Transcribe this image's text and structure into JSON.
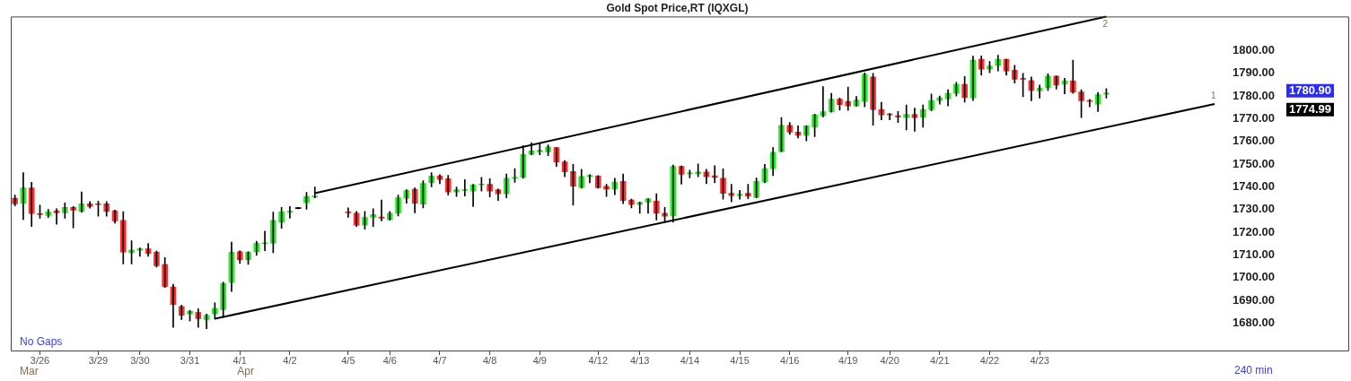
{
  "chart_data": {
    "type": "candlestick",
    "title": "Gold Spot Price,RT (IQXGL)",
    "categories": [
      null,
      null,
      null,
      "3/26",
      null,
      null,
      null,
      null,
      null,
      null,
      "3/29",
      null,
      null,
      null,
      null,
      "3/30",
      null,
      null,
      null,
      null,
      null,
      "3/31",
      null,
      null,
      null,
      null,
      null,
      "4/1",
      null,
      null,
      null,
      null,
      null,
      "4/2",
      null,
      null,
      null,
      null,
      null,
      null,
      "4/5",
      null,
      null,
      null,
      null,
      "4/6",
      null,
      null,
      null,
      null,
      null,
      "4/7",
      null,
      null,
      null,
      null,
      null,
      "4/8",
      null,
      null,
      null,
      null,
      null,
      "4/9",
      null,
      null,
      null,
      null,
      null,
      null,
      "4/12",
      null,
      null,
      null,
      null,
      "4/13",
      null,
      null,
      null,
      null,
      null,
      "4/14",
      null,
      null,
      null,
      null,
      null,
      "4/15",
      null,
      null,
      null,
      null,
      null,
      "4/16",
      null,
      null,
      null,
      null,
      null,
      null,
      "4/19",
      null,
      null,
      null,
      null,
      "4/20",
      null,
      null,
      null,
      null,
      null,
      "4/21",
      null,
      null,
      null,
      null,
      null,
      "4/22",
      null,
      null,
      null,
      null,
      null,
      "4/23",
      null,
      null,
      null,
      null,
      null,
      null,
      null,
      null,
      null,
      null,
      null,
      null,
      null,
      null,
      null,
      null,
      null,
      null,
      null,
      null,
      null,
      null
    ],
    "ohlc": [
      [
        1735,
        1736.4,
        1731.6,
        1732.5
      ],
      [
        1732.8,
        1746.3,
        1725.6,
        1739.6
      ],
      [
        1739.6,
        1742,
        1722.6,
        1728.3
      ],
      [
        1728.2,
        1732,
        1726.2,
        1727.8
      ],
      [
        1727.4,
        1730.1,
        1726.5,
        1729
      ],
      [
        1729.5,
        1730.4,
        1723.6,
        1728.6
      ],
      [
        1728.6,
        1733,
        1726.2,
        1731
      ],
      [
        1731,
        1731.4,
        1722,
        1729.8
      ],
      [
        1729.2,
        1737.8,
        1728.9,
        1732.6
      ],
      [
        1732.6,
        1733.6,
        1730.7,
        1731.4
      ],
      [
        1732.6,
        1733.8,
        1727.1,
        1732.2
      ],
      [
        1732.6,
        1733.6,
        1727.1,
        1729.2
      ],
      [
        1729.5,
        1729.8,
        1724.1,
        1725
      ],
      [
        1725.3,
        1729.1,
        1706.1,
        1711.3
      ],
      [
        1711,
        1716.3,
        1706.1,
        1712.2
      ],
      [
        1712.1,
        1713.1,
        1709.5,
        1712.8
      ],
      [
        1712.8,
        1715.1,
        1709.5,
        1710.7
      ],
      [
        1711.3,
        1711.8,
        1704.7,
        1705.3
      ],
      [
        1705.9,
        1708.9,
        1695.7,
        1696.1
      ],
      [
        1696,
        1697.2,
        1678.2,
        1688.2
      ],
      [
        1687.4,
        1688,
        1681.6,
        1683.5
      ],
      [
        1684.1,
        1685.7,
        1681,
        1685.3
      ],
      [
        1684.8,
        1686.4,
        1678.2,
        1682
      ],
      [
        1681.6,
        1684,
        1677.6,
        1683.5
      ],
      [
        1684.1,
        1689,
        1681.8,
        1686.5
      ],
      [
        1686,
        1698.1,
        1682.6,
        1697.5
      ],
      [
        1697.9,
        1715.7,
        1694,
        1711.3
      ],
      [
        1711.5,
        1711.9,
        1706.3,
        1707.9
      ],
      [
        1707.9,
        1711.5,
        1705.9,
        1711.3
      ],
      [
        1711.5,
        1716.1,
        1709.9,
        1715.2
      ],
      [
        1715,
        1720.5,
        1711.9,
        1715.4
      ],
      [
        1715.2,
        1728.9,
        1711,
        1725.3
      ],
      [
        1724.4,
        1731,
        1721.8,
        1729
      ],
      [
        1728.9,
        1731.4,
        1726.2,
        1729.2
      ],
      [
        1730.5,
        1731,
        1730.4,
        1730.9
      ],
      [
        1733,
        1737.6,
        1730.2,
        1735.8
      ],
      [
        1735.5,
        1740,
        1735.2,
        1736
      ],
      null,
      null,
      null,
      [
        1729,
        1730.8,
        1726.6,
        1728.6
      ],
      [
        1728.4,
        1729.2,
        1722.6,
        1723.2
      ],
      [
        1723.2,
        1729.2,
        1721.4,
        1726.6
      ],
      [
        1726.6,
        1730.4,
        1722.6,
        1727.8
      ],
      [
        1726.8,
        1734.2,
        1725,
        1726.2
      ],
      [
        1725.6,
        1729.2,
        1725.3,
        1728.4
      ],
      [
        1728.4,
        1736.4,
        1727.2,
        1735.2
      ],
      [
        1735,
        1738.8,
        1732.8,
        1738.4
      ],
      [
        1739,
        1739.6,
        1728.6,
        1732.8
      ],
      [
        1732.4,
        1742.7,
        1730.8,
        1741.5
      ],
      [
        1741.8,
        1746.3,
        1740,
        1744.8
      ],
      [
        1744.8,
        1745.4,
        1741.4,
        1743.3
      ],
      [
        1743.6,
        1745.1,
        1736.4,
        1737.8
      ],
      [
        1737.8,
        1740,
        1735.8,
        1738.8
      ],
      [
        1738.5,
        1743.2,
        1736,
        1738.7
      ],
      [
        1738.2,
        1741.2,
        1731.4,
        1740.9
      ],
      [
        1740.9,
        1744.2,
        1738.2,
        1741.3
      ],
      [
        1741.2,
        1743.6,
        1735.6,
        1738.2
      ],
      [
        1738.8,
        1739.1,
        1734,
        1737
      ],
      [
        1737,
        1745.7,
        1735.2,
        1743.8
      ],
      [
        1743.8,
        1748.1,
        1742,
        1744.2
      ],
      [
        1744.2,
        1758.2,
        1743.8,
        1754.3
      ],
      [
        1754.3,
        1759.4,
        1754.1,
        1755.8
      ],
      [
        1755.4,
        1759.1,
        1754.1,
        1756.1
      ],
      [
        1755.4,
        1758.5,
        1753.7,
        1757.6
      ],
      [
        1757.3,
        1757.3,
        1749,
        1751
      ],
      [
        1751,
        1751.6,
        1744.5,
        1746.6
      ],
      [
        1746.8,
        1749.9,
        1731.9,
        1740.3
      ],
      [
        1739.7,
        1747.8,
        1739.4,
        1744.6
      ],
      [
        1744.5,
        1745.4,
        1741.8,
        1745.1
      ],
      [
        1744.8,
        1745,
        1739.4,
        1739.6
      ],
      [
        1740.3,
        1741.2,
        1735.8,
        1739
      ],
      [
        1739,
        1743.8,
        1736.6,
        1742.1
      ],
      [
        1742.4,
        1745.7,
        1732.6,
        1734
      ],
      [
        1734.2,
        1734.6,
        1730.8,
        1732.2
      ],
      [
        1732.2,
        1733.4,
        1728.4,
        1733.2
      ],
      [
        1733.2,
        1734.8,
        1728.4,
        1734.8
      ],
      [
        1733.8,
        1737,
        1725.4,
        1728.4
      ],
      [
        1728.4,
        1731,
        1724.4,
        1727.1
      ],
      [
        1727.2,
        1749.6,
        1724.4,
        1749
      ],
      [
        1749,
        1749.2,
        1741.2,
        1745.6
      ],
      [
        1745.8,
        1747.4,
        1744,
        1746
      ],
      [
        1745.8,
        1750.1,
        1744.5,
        1746.6
      ],
      [
        1746.6,
        1747.8,
        1741.4,
        1744.5
      ],
      [
        1744.9,
        1749.3,
        1741.8,
        1744.2
      ],
      [
        1743.8,
        1748,
        1734.6,
        1737.2
      ],
      [
        1737.2,
        1741.2,
        1733.4,
        1736.2
      ],
      [
        1736.2,
        1738.5,
        1734.6,
        1736.8
      ],
      [
        1737.2,
        1741.2,
        1734.8,
        1736
      ],
      [
        1735.4,
        1743.9,
        1735.2,
        1742.4
      ],
      [
        1742.1,
        1749.9,
        1741.8,
        1748.1
      ],
      [
        1748,
        1757.3,
        1745,
        1755.3
      ],
      [
        1755.5,
        1770.5,
        1755.5,
        1767.1
      ],
      [
        1767.1,
        1768.4,
        1763.1,
        1764.1
      ],
      [
        1764.1,
        1766.9,
        1761.5,
        1762.7
      ],
      [
        1762.7,
        1766.9,
        1760.3,
        1766.9
      ],
      [
        1766.3,
        1772,
        1762.1,
        1771.7
      ],
      [
        1771.3,
        1784.2,
        1770.8,
        1773.1
      ],
      [
        1773.1,
        1781.2,
        1772.9,
        1778.6
      ],
      [
        1778.6,
        1779.1,
        1773.8,
        1776.2
      ],
      [
        1777.6,
        1784,
        1773.7,
        1775.6
      ],
      [
        1775.6,
        1779.8,
        1775.5,
        1778.2
      ],
      [
        1777.6,
        1790.2,
        1775.2,
        1789.6
      ],
      [
        1788.4,
        1790,
        1767.2,
        1774.1
      ],
      [
        1774.1,
        1777.3,
        1769.5,
        1771.7
      ],
      [
        1772.1,
        1772.3,
        1769.5,
        1771.7
      ],
      [
        1771.3,
        1773.2,
        1768.3,
        1770.8
      ],
      [
        1770.5,
        1776.1,
        1765.1,
        1771.9
      ],
      [
        1771.9,
        1774.7,
        1764.5,
        1770.5
      ],
      [
        1770.7,
        1776.1,
        1766.3,
        1774.1
      ],
      [
        1774.1,
        1780.9,
        1773.5,
        1778
      ],
      [
        1778,
        1780,
        1776.4,
        1779.2
      ],
      [
        1778.8,
        1782.8,
        1775.6,
        1781.2
      ],
      [
        1781.2,
        1786,
        1780,
        1785.1
      ],
      [
        1785.1,
        1788.6,
        1777.3,
        1779.4
      ],
      [
        1779.2,
        1797.6,
        1778,
        1795.8
      ],
      [
        1796.2,
        1797.7,
        1789.2,
        1791.8
      ],
      [
        1791.8,
        1795.2,
        1790.2,
        1793.2
      ],
      [
        1793.4,
        1798,
        1791,
        1796.2
      ],
      [
        1796.2,
        1796.2,
        1789.2,
        1791
      ],
      [
        1791.4,
        1793.5,
        1785.7,
        1787.4
      ],
      [
        1787.8,
        1790,
        1779.7,
        1787.4
      ],
      [
        1786.8,
        1788.4,
        1777.9,
        1782.4
      ],
      [
        1782.2,
        1784.8,
        1779.1,
        1783.6
      ],
      [
        1783.6,
        1789.8,
        1782.4,
        1788.8
      ],
      [
        1788.8,
        1788.8,
        1783,
        1784.8
      ],
      [
        1785.2,
        1787.8,
        1781,
        1786.6
      ],
      [
        1786.6,
        1795.8,
        1781.2,
        1781.8
      ],
      [
        1781.8,
        1782.8,
        1770.5,
        1777.9
      ],
      [
        1778,
        1778.5,
        1775.2,
        1777.6
      ],
      [
        1776.4,
        1781.6,
        1773.2,
        1780.6
      ],
      [
        1781.2,
        1783.3,
        1779.1,
        1780.9
      ],
      null,
      null,
      null,
      null,
      null,
      null,
      null,
      null,
      null,
      null,
      null,
      null,
      null,
      null
    ],
    "colors": [
      "#ff2e2e",
      "#22ee22",
      "#ff2e2e",
      "#ff2e2e",
      "#22ee22",
      "#ff2e2e",
      "#22ee22",
      "#ff2e2e",
      "#22ee22",
      "#ff2e2e",
      "#ff2e2e",
      "#ff2e2e",
      "#ff2e2e",
      "#ff2e2e",
      "#22ee22",
      "#22ee22",
      "#ff2e2e",
      "#ff2e2e",
      "#ff2e2e",
      "#ff2e2e",
      "#ff2e2e",
      "#22ee22",
      "#ff2e2e",
      "#22ee22",
      "#22ee22",
      "#22ee22",
      "#22ee22",
      "#ff2e2e",
      "#22ee22",
      "#22ee22",
      "#22ee22",
      "#22ee22",
      "#22ee22",
      "#22ee22",
      "#000000",
      "#22ee22",
      "#22ee22",
      null,
      null,
      null,
      "#ff2e2e",
      "#ff2e2e",
      "#22ee22",
      "#22ee22",
      "#ff2e2e",
      "#22ee22",
      "#22ee22",
      "#22ee22",
      "#ff2e2e",
      "#22ee22",
      "#22ee22",
      "#ff2e2e",
      "#ff2e2e",
      "#22ee22",
      "#22ee22",
      "#22ee22",
      "#22ee22",
      "#ff2e2e",
      "#ff2e2e",
      "#22ee22",
      "#22ee22",
      "#22ee22",
      "#22ee22",
      "#22ee22",
      "#22ee22",
      "#ff2e2e",
      "#ff2e2e",
      "#ff2e2e",
      "#22ee22",
      "#22ee22",
      "#ff2e2e",
      "#ff2e2e",
      "#22ee22",
      "#ff2e2e",
      "#ff2e2e",
      "#22ee22",
      "#22ee22",
      "#ff2e2e",
      "#ff2e2e",
      "#22ee22",
      "#ff2e2e",
      "#22ee22",
      "#22ee22",
      "#ff2e2e",
      "#ff2e2e",
      "#ff2e2e",
      "#ff2e2e",
      "#22ee22",
      "#ff2e2e",
      "#22ee22",
      "#22ee22",
      "#22ee22",
      "#22ee22",
      "#ff2e2e",
      "#ff2e2e",
      "#22ee22",
      "#22ee22",
      "#22ee22",
      "#22ee22",
      "#ff2e2e",
      "#ff2e2e",
      "#22ee22",
      "#22ee22",
      "#ff2e2e",
      "#ff2e2e",
      "#ff2e2e",
      "#ff2e2e",
      "#22ee22",
      "#ff2e2e",
      "#22ee22",
      "#22ee22",
      "#22ee22",
      "#22ee22",
      "#22ee22",
      "#ff2e2e",
      "#22ee22",
      "#ff2e2e",
      "#22ee22",
      "#22ee22",
      "#ff2e2e",
      "#ff2e2e",
      "#ff2e2e",
      "#ff2e2e",
      "#22ee22",
      "#22ee22",
      "#ff2e2e",
      "#22ee22",
      "#ff2e2e",
      "#ff2e2e",
      "#ff2e2e",
      "#22ee22",
      "#22ee22",
      null,
      null,
      null,
      null,
      null,
      null,
      null,
      null,
      null,
      null,
      null,
      null,
      null,
      null
    ],
    "series": [
      {
        "type": "line",
        "color": "#000000",
        "values": [
          null,
          null,
          null,
          null,
          null,
          null,
          null,
          null,
          null,
          null,
          null,
          null,
          null,
          null,
          null,
          null,
          null,
          null,
          null,
          null,
          null,
          null,
          null,
          null,
          1682,
          null,
          null,
          null,
          null,
          null,
          null,
          null,
          null,
          null,
          null,
          null,
          null,
          null,
          null,
          null,
          null,
          null,
          null,
          null,
          null,
          null,
          null,
          null,
          null,
          null,
          null,
          null,
          null,
          null,
          null,
          null,
          null,
          null,
          null,
          null,
          null,
          null,
          null,
          null,
          null,
          null,
          null,
          null,
          null,
          null,
          null,
          null,
          null,
          null,
          null,
          null,
          null,
          null,
          null,
          null,
          null,
          null,
          null,
          null,
          null,
          null,
          null,
          null,
          null,
          null,
          null,
          null,
          null,
          null,
          null,
          null,
          null,
          null,
          null,
          null,
          null,
          null,
          null,
          null,
          null,
          null,
          null,
          null,
          null,
          null,
          null,
          null,
          null,
          null,
          null,
          null,
          null,
          null,
          null,
          null,
          null,
          null,
          null,
          null,
          null,
          null,
          null,
          null,
          null,
          null,
          null,
          null,
          null,
          null,
          null,
          null,
          null,
          null,
          null,
          null,
          null,
          null,
          null,
          null,
          1776.5,
          null
        ]
      },
      {
        "type": "line",
        "color": "#000000",
        "values": [
          null,
          null,
          null,
          null,
          null,
          null,
          null,
          null,
          null,
          null,
          null,
          null,
          null,
          null,
          null,
          null,
          null,
          null,
          null,
          null,
          null,
          null,
          null,
          null,
          null,
          null,
          null,
          null,
          null,
          null,
          null,
          null,
          null,
          null,
          null,
          null,
          1737.2,
          null,
          null,
          null,
          null,
          null,
          null,
          null,
          null,
          null,
          null,
          null,
          null,
          null,
          null,
          null,
          null,
          null,
          null,
          null,
          null,
          null,
          null,
          null,
          null,
          null,
          null,
          null,
          null,
          null,
          null,
          null,
          null,
          null,
          null,
          null,
          null,
          null,
          null,
          null,
          null,
          null,
          null,
          null,
          null,
          null,
          null,
          null,
          null,
          null,
          null,
          null,
          null,
          null,
          null,
          null,
          null,
          null,
          null,
          null,
          null,
          null,
          null,
          null,
          null,
          null,
          null,
          null,
          null,
          null,
          null,
          null,
          null,
          null,
          null,
          null,
          null,
          null,
          null,
          null,
          null,
          null,
          null,
          null,
          null,
          null,
          null,
          null,
          null,
          null,
          null,
          null,
          null,
          null,
          null,
          1815,
          null,
          null,
          null,
          null,
          null,
          null,
          null,
          null,
          null,
          null,
          null,
          null,
          null,
          null
        ]
      }
    ],
    "ylim": [
      1668,
      1815
    ],
    "yticks": [
      {
        "value": 1680,
        "label": "1680.00"
      },
      {
        "value": 1690,
        "label": "1690.00"
      },
      {
        "value": 1700,
        "label": "1700.00"
      },
      {
        "value": 1710,
        "label": "1710.00"
      },
      {
        "value": 1720,
        "label": "1720.00"
      },
      {
        "value": 1730,
        "label": "1730.00"
      },
      {
        "value": 1740,
        "label": "1740.00"
      },
      {
        "value": 1750,
        "label": "1750.00"
      },
      {
        "value": 1760,
        "label": "1760.00"
      },
      {
        "value": 1770,
        "label": "1770.00"
      },
      {
        "value": 1780,
        "label": "1780.00"
      },
      {
        "value": 1790,
        "label": "1790.00"
      },
      {
        "value": 1800,
        "label": "1800.00"
      }
    ],
    "grid": false,
    "legend": false,
    "marker": "none",
    "annotations": [
      "No Gaps",
      "Mar",
      "Apr",
      "240 min",
      "1780.90",
      "1774.99",
      "2",
      "1"
    ]
  }
}
